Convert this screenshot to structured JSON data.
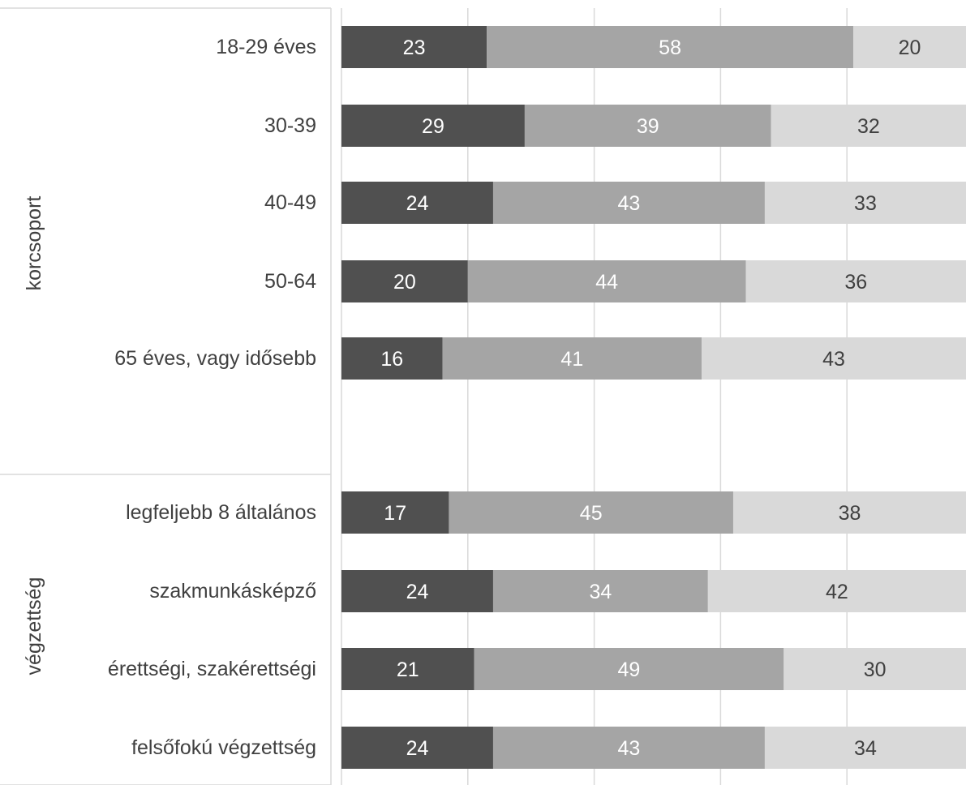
{
  "chart_data": {
    "type": "bar",
    "orientation": "horizontal",
    "stacked": true,
    "grid": true,
    "legend": "none",
    "xlim": [
      0,
      100
    ],
    "groups": [
      {
        "label": "korcsoport",
        "categories": [
          "18-29 éves",
          "30-39",
          "40-49",
          "50-64",
          "65 éves, vagy idősebb"
        ],
        "series": [
          {
            "values": [
              23,
              29,
              24,
              20,
              16
            ],
            "color": "#505050",
            "label_color": "#ffffff"
          },
          {
            "values": [
              58,
              39,
              43,
              44,
              41
            ],
            "color": "#a5a5a5",
            "label_color": "#ffffff"
          },
          {
            "values": [
              20,
              32,
              33,
              36,
              43
            ],
            "color": "#d9d9d9",
            "label_color": "#404040"
          }
        ]
      },
      {
        "label": "végzettség",
        "categories": [
          "legfeljebb 8 általános",
          "szakmunkásképző",
          "érettségi, szakérettségi",
          "felsőfokú végzettség"
        ],
        "series": [
          {
            "values": [
              17,
              24,
              21,
              24
            ],
            "color": "#505050",
            "label_color": "#ffffff"
          },
          {
            "values": [
              45,
              34,
              49,
              43
            ],
            "color": "#a5a5a5",
            "label_color": "#ffffff"
          },
          {
            "values": [
              38,
              42,
              30,
              34
            ],
            "color": "#d9d9d9",
            "label_color": "#404040"
          }
        ]
      }
    ]
  }
}
